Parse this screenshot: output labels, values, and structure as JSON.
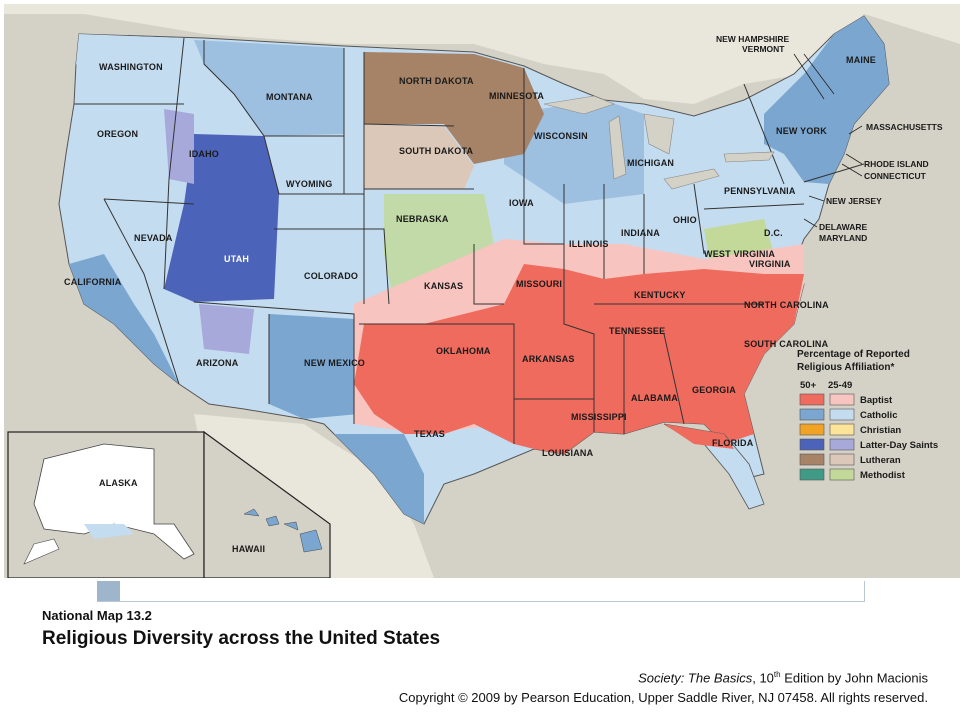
{
  "map": {
    "colors": {
      "water": "#d4d2c6",
      "baptist_high": "#ef6b5e",
      "baptist_low": "#f7c4c0",
      "catholic_high": "#7aa6d0",
      "catholic_low": "#c4dcf0",
      "christian_high": "#f0a325",
      "christian_low": "#fbe39a",
      "lds_high": "#4b63b8",
      "lds_low": "#a6a9da",
      "lutheran_high": "#a68366",
      "lutheran_low": "#dcc8b8",
      "methodist_high": "#3f9a86",
      "methodist_low": "#c2d99a",
      "no_data": "#ffffff"
    },
    "state_labels": {
      "washington": "WASHINGTON",
      "oregon": "OREGON",
      "california": "CALIFORNIA",
      "nevada": "NEVADA",
      "idaho": "IDAHO",
      "montana": "MONTANA",
      "wyoming": "WYOMING",
      "utah": "UTAH",
      "colorado": "COLORADO",
      "arizona": "ARIZONA",
      "new_mexico": "NEW MEXICO",
      "north_dakota": "NORTH DAKOTA",
      "south_dakota": "SOUTH DAKOTA",
      "nebraska": "NEBRASKA",
      "kansas": "KANSAS",
      "oklahoma": "OKLAHOMA",
      "texas": "TEXAS",
      "minnesota": "MINNESOTA",
      "iowa": "IOWA",
      "missouri": "MISSOURI",
      "arkansas": "ARKANSAS",
      "louisiana": "LOUISIANA",
      "wisconsin": "WISCONSIN",
      "illinois": "ILLINOIS",
      "michigan": "MICHIGAN",
      "indiana": "INDIANA",
      "ohio": "OHIO",
      "kentucky": "KENTUCKY",
      "tennessee": "TENNESSEE",
      "mississippi": "MISSISSIPPI",
      "alabama": "ALABAMA",
      "georgia": "GEORGIA",
      "florida": "FLORIDA",
      "south_carolina": "SOUTH CAROLINA",
      "north_carolina": "NORTH CAROLINA",
      "virginia": "VIRGINIA",
      "west_virginia": "WEST VIRGINIA",
      "pennsylvania": "PENNSYLVANIA",
      "new_york": "NEW YORK",
      "maine": "MAINE",
      "dc": "D.C.",
      "alaska": "ALASKA",
      "hawaii": "HAWAII"
    },
    "callout_labels": {
      "nh_vt": [
        "NEW HAMPSHIRE",
        "VERMONT"
      ],
      "massachusetts": "MASSACHUSETTS",
      "ri_ct": [
        "RHODE ISLAND",
        "CONNECTICUT"
      ],
      "new_jersey": "NEW JERSEY",
      "de_md": [
        "DELAWARE",
        "MARYLAND"
      ]
    },
    "legend": {
      "title_line1": "Percentage of Reported",
      "title_line2": "Religious Affiliation*",
      "col_high": "50+",
      "col_low": "25-49",
      "items": [
        {
          "label": "Baptist",
          "high": "#ef6b5e",
          "low": "#f7c4c0"
        },
        {
          "label": "Catholic",
          "high": "#7aa6d0",
          "low": "#c4dcf0"
        },
        {
          "label": "Christian",
          "high": "#f0a325",
          "low": "#fbe39a"
        },
        {
          "label": "Latter-Day Saints",
          "high": "#4b63b8",
          "low": "#a6a9da"
        },
        {
          "label": "Lutheran",
          "high": "#a68366",
          "low": "#dcc8b8"
        },
        {
          "label": "Methodist",
          "high": "#3f9a86",
          "low": "#c2d99a"
        }
      ]
    }
  },
  "caption": {
    "kicker": "National Map 13.2",
    "title": "Religious Diversity across the United States"
  },
  "credit": {
    "book_title": "Society: The Basics",
    "edition_num": ", 10",
    "edition_sup": "th",
    "edition_rest": " Edition by John Macionis",
    "copyright": "Copyright © 2009 by Pearson Education, Upper Saddle River, NJ  07458.  All rights reserved."
  }
}
